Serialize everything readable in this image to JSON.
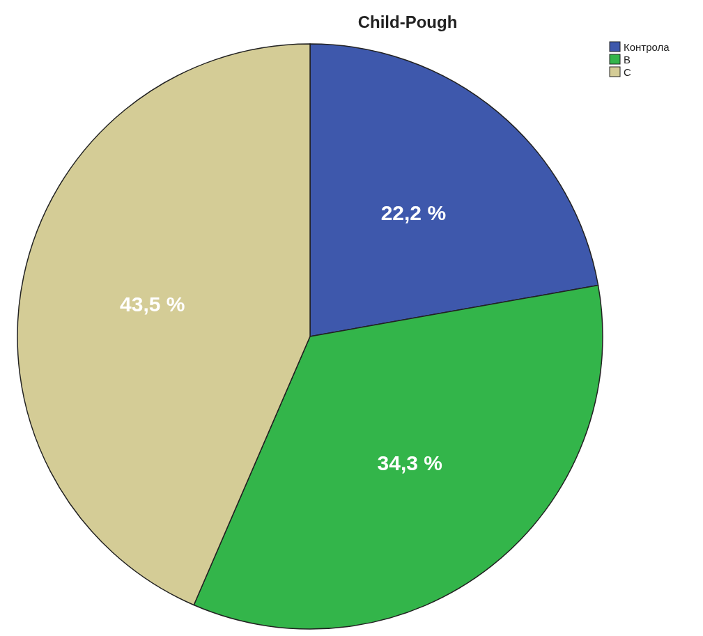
{
  "chart_data": {
    "type": "pie",
    "title": "Child-Pough",
    "categories": [
      "Контрола",
      "B",
      "C"
    ],
    "values": [
      22.2,
      34.3,
      43.5
    ],
    "colors": [
      "#3e58ac",
      "#33b54a",
      "#d4cc96"
    ],
    "value_labels": [
      "22,2 %",
      "34,3 %",
      "43,5 %"
    ],
    "legend": "top right"
  }
}
